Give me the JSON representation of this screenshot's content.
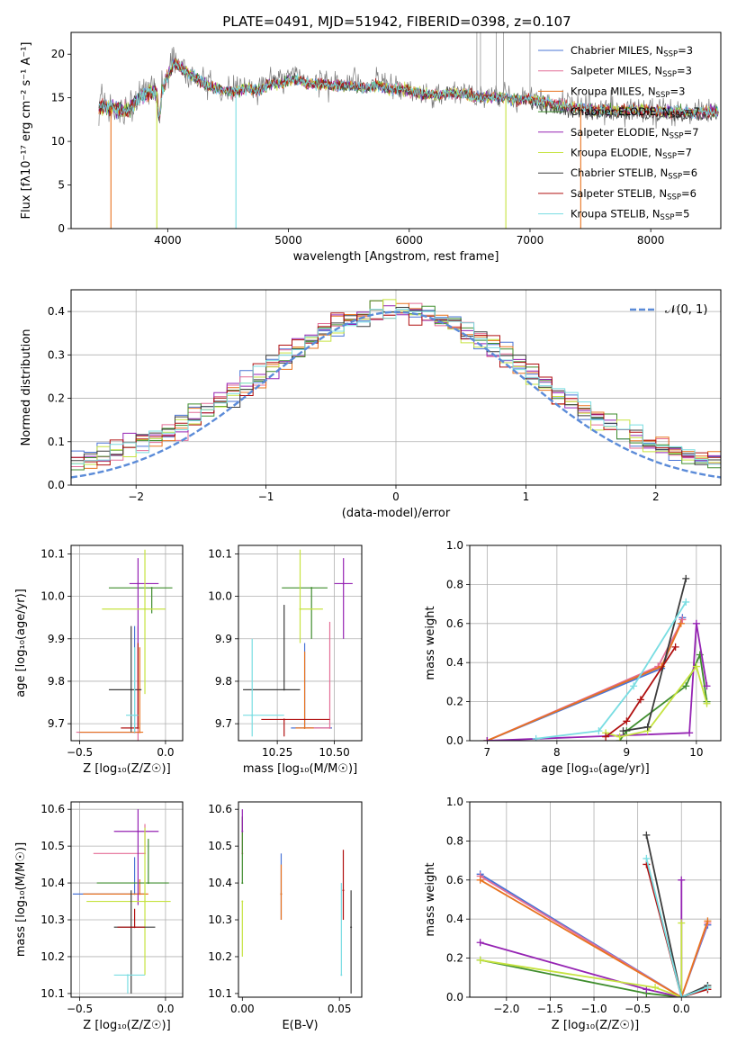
{
  "figure": {
    "title": "PLATE=0491, MJD=51942, FIBERID=0398, z=0.107"
  },
  "models": [
    {
      "name": "Chabrier MILES",
      "nssp": "3",
      "color": "#4a74d6"
    },
    {
      "name": "Salpeter MILES",
      "nssp": "3",
      "color": "#e46e97"
    },
    {
      "name": "Kroupa MILES",
      "nssp": "3",
      "color": "#e8731f"
    },
    {
      "name": "Chabrier ELODIE",
      "nssp": "7",
      "color": "#3f8d2d"
    },
    {
      "name": "Salpeter ELODIE",
      "nssp": "7",
      "color": "#9523b3"
    },
    {
      "name": "Kroupa ELODIE",
      "nssp": "7",
      "color": "#c6e340"
    },
    {
      "name": "Chabrier STELIB",
      "nssp": "6",
      "color": "#3c3c3c"
    },
    {
      "name": "Salpeter STELIB",
      "nssp": "6",
      "color": "#b01010"
    },
    {
      "name": "Kroupa STELIB",
      "nssp": "5",
      "color": "#79dde2"
    }
  ],
  "chart_data": [
    {
      "id": "spectrum",
      "type": "line",
      "title": "PLATE=0491, MJD=51942, FIBERID=0398, z=0.107",
      "xlabel": "wavelength [Angstrom, rest frame]",
      "ylabel": "Flux [fλ10⁻¹⁷ erg cm⁻² s⁻¹ A⁻¹]",
      "xlim": [
        3200,
        8580
      ],
      "ylim": [
        0,
        22.5
      ],
      "xticks": [
        "4000",
        "5000",
        "6000",
        "7000",
        "8000"
      ],
      "yticks": [
        "0",
        "5",
        "10",
        "15",
        "20"
      ],
      "legend_position": "top-right",
      "data_x": [
        3450,
        3550,
        3650,
        3750,
        3850,
        3950,
        4050,
        4150,
        4250,
        4350,
        4450,
        4550,
        4650,
        4750,
        4850,
        4950,
        5050,
        5150,
        5250,
        5350,
        5450,
        5550,
        5650,
        5750,
        5850,
        5950,
        6050,
        6150,
        6250,
        6350,
        6450,
        6550,
        6650,
        6750,
        6850,
        6950,
        7050,
        7150,
        7250,
        7350,
        7450,
        7550,
        7650,
        7750,
        7850,
        7950,
        8050,
        8150,
        8250,
        8350,
        8450,
        8550
      ],
      "data_y": [
        14.2,
        14.0,
        13.6,
        15.0,
        15.8,
        16.0,
        19.5,
        18.2,
        17.3,
        16.5,
        16.0,
        15.9,
        16.3,
        16.0,
        16.8,
        17.0,
        17.6,
        16.8,
        16.8,
        16.6,
        16.6,
        16.5,
        16.3,
        16.8,
        16.0,
        16.2,
        15.8,
        15.6,
        15.4,
        15.7,
        15.6,
        15.3,
        15.2,
        15.2,
        14.9,
        15.1,
        14.9,
        14.6,
        14.2,
        14.0,
        13.9,
        13.7,
        13.7,
        13.6,
        13.8,
        13.6,
        13.5,
        13.6,
        13.5,
        13.4,
        13.6,
        13.5
      ],
      "model_y": [
        14.0,
        13.9,
        13.4,
        14.8,
        15.6,
        15.8,
        19.0,
        18.0,
        17.1,
        16.3,
        15.8,
        15.7,
        16.1,
        15.8,
        16.6,
        16.7,
        17.2,
        16.6,
        16.6,
        16.4,
        16.4,
        16.3,
        16.1,
        16.4,
        15.9,
        16.0,
        15.6,
        15.4,
        15.3,
        15.5,
        15.4,
        15.1,
        15.0,
        15.0,
        14.8,
        14.9,
        14.7,
        14.4,
        14.1,
        13.9,
        13.8,
        13.6,
        13.6,
        13.5,
        13.6,
        13.5,
        13.4,
        13.4,
        13.4,
        13.3,
        13.4,
        13.4
      ],
      "absorption_dips": [
        3530,
        3910,
        4565,
        6800,
        7420
      ],
      "emission_spikes": [
        6560,
        6590,
        6720,
        7000,
        6780
      ]
    },
    {
      "id": "residuals",
      "type": "histogram",
      "xlabel": "(data-model)/error",
      "ylabel": "Normed distribution",
      "xlim": [
        -2.5,
        2.5
      ],
      "ylim": [
        0,
        0.45
      ],
      "xticks": [
        "−2",
        "−1",
        "0",
        "1",
        "2"
      ],
      "yticks": [
        "0.0",
        "0.1",
        "0.2",
        "0.3",
        "0.4"
      ],
      "grid": true,
      "legend_position": "top-right",
      "reference_curve": "𝒩(0, 1)",
      "bin_width": 0.1
    },
    {
      "id": "age-vs-z",
      "type": "scatter",
      "xlabel": "Z [log₁₀(Z/Z☉)]",
      "ylabel": "age  [log₁₀(age/yr)]",
      "xlim": [
        -0.55,
        0.1
      ],
      "ylim": [
        9.66,
        10.12
      ],
      "xticks": [
        "−0.5",
        "0.0"
      ],
      "yticks": [
        "9.7",
        "9.8",
        "9.9",
        "10.0",
        "10.1"
      ],
      "grid": true,
      "points": [
        {
          "x": -0.18,
          "y": 9.68,
          "ex": [
            0.33,
            0.02
          ],
          "ey": [
            0.0,
            0.25
          ]
        },
        {
          "x": -0.16,
          "y": 9.68,
          "ex": [
            0.36,
            0.02
          ],
          "ey": [
            0.02,
            0.25
          ]
        },
        {
          "x": -0.15,
          "y": 9.68,
          "ex": [
            0.35,
            0.02
          ],
          "ey": [
            0.0,
            0.2
          ]
        },
        {
          "x": -0.08,
          "y": 10.02,
          "ex": [
            0.25,
            0.12
          ],
          "ey": [
            0.06,
            0.0
          ]
        },
        {
          "x": -0.16,
          "y": 10.03,
          "ex": [
            0.05,
            0.12
          ],
          "ey": [
            0.34,
            0.06
          ]
        },
        {
          "x": -0.12,
          "y": 9.97,
          "ex": [
            0.25,
            0.12
          ],
          "ey": [
            0.2,
            0.14
          ]
        },
        {
          "x": -0.2,
          "y": 9.78,
          "ex": [
            0.13,
            0.06
          ],
          "ey": [
            0.1,
            0.15
          ]
        },
        {
          "x": -0.16,
          "y": 9.69,
          "ex": [
            0.1,
            0.0
          ],
          "ey": [
            0.0,
            0.2
          ]
        },
        {
          "x": -0.18,
          "y": 9.72,
          "ex": [
            0.05,
            0.02
          ],
          "ey": [
            0.04,
            0.16
          ]
        }
      ]
    },
    {
      "id": "age-vs-mass",
      "type": "scatter",
      "xlabel": "mass [log₁₀(M/M☉)]",
      "ylabel": "",
      "xlim": [
        10.08,
        10.62
      ],
      "ylim": [
        9.66,
        10.12
      ],
      "xticks": [
        "10.25",
        "10.50"
      ],
      "yticks": [
        "9.7",
        "9.8",
        "9.9",
        "10.0",
        "10.1"
      ],
      "grid": true,
      "points": [
        {
          "x": 10.37,
          "y": 9.69,
          "ex": [
            0.06,
            0.12
          ],
          "ey": [
            0.0,
            0.2
          ]
        },
        {
          "x": 10.48,
          "y": 9.69,
          "ex": [
            0.1,
            0.0
          ],
          "ey": [
            0.0,
            0.25
          ]
        },
        {
          "x": 10.37,
          "y": 9.69,
          "ex": [
            0.04,
            0.04
          ],
          "ey": [
            0.0,
            0.18
          ]
        },
        {
          "x": 10.4,
          "y": 10.02,
          "ex": [
            0.13,
            0.07
          ],
          "ey": [
            0.12,
            0.0
          ]
        },
        {
          "x": 10.54,
          "y": 10.03,
          "ex": [
            0.04,
            0.04
          ],
          "ey": [
            0.13,
            0.06
          ]
        },
        {
          "x": 10.35,
          "y": 9.97,
          "ex": [
            0.0,
            0.1
          ],
          "ey": [
            0.08,
            0.14
          ]
        },
        {
          "x": 10.28,
          "y": 9.78,
          "ex": [
            0.18,
            0.07
          ],
          "ey": [
            0.0,
            0.2
          ]
        },
        {
          "x": 10.28,
          "y": 9.71,
          "ex": [
            0.1,
            0.2
          ],
          "ey": [
            0.04,
            0.0
          ]
        },
        {
          "x": 10.14,
          "y": 9.72,
          "ex": [
            0.04,
            0.14
          ],
          "ey": [
            0.05,
            0.18
          ]
        }
      ]
    },
    {
      "id": "massweight-vs-age",
      "type": "line",
      "xlabel": "age  [log₁₀(age/yr)]",
      "ylabel": "mass weight",
      "xlim": [
        6.75,
        10.35
      ],
      "ylim": [
        0,
        1
      ],
      "xticks": [
        "7",
        "8",
        "9",
        "10"
      ],
      "yticks": [
        "0.0",
        "0.2",
        "0.4",
        "0.6",
        "0.8",
        "1.0"
      ],
      "grid": true,
      "series": [
        {
          "x": [
            7.0,
            9.5,
            9.8
          ],
          "y": [
            0.0,
            0.37,
            0.63
          ]
        },
        {
          "x": [
            7.0,
            9.45,
            9.8
          ],
          "y": [
            0.0,
            0.38,
            0.62
          ]
        },
        {
          "x": [
            7.0,
            9.5,
            9.78
          ],
          "y": [
            0.0,
            0.38,
            0.6
          ]
        },
        {
          "x": [
            8.9,
            9.0,
            9.85,
            10.05,
            10.15
          ],
          "y": [
            0.0,
            0.05,
            0.28,
            0.44,
            0.2
          ]
        },
        {
          "x": [
            7.0,
            9.9,
            10.0,
            10.15
          ],
          "y": [
            0.0,
            0.04,
            0.6,
            0.28
          ]
        },
        {
          "x": [
            8.7,
            8.9,
            9.3,
            10.0,
            10.15
          ],
          "y": [
            0.04,
            0.02,
            0.05,
            0.38,
            0.19
          ]
        },
        {
          "x": [
            8.95,
            9.3,
            9.85
          ],
          "y": [
            0.05,
            0.07,
            0.83
          ]
        },
        {
          "x": [
            8.7,
            9.0,
            9.2,
            9.7
          ],
          "y": [
            0.02,
            0.1,
            0.21,
            0.48
          ]
        },
        {
          "x": [
            7.7,
            8.6,
            9.1,
            9.85
          ],
          "y": [
            0.01,
            0.05,
            0.28,
            0.71
          ]
        }
      ]
    },
    {
      "id": "mass-vs-z",
      "type": "scatter",
      "xlabel": "Z [log₁₀(Z/Z☉)]",
      "ylabel": "mass [log₁₀(M/M☉)]",
      "xlim": [
        -0.55,
        0.1
      ],
      "ylim": [
        10.09,
        10.62
      ],
      "xticks": [
        "−0.5",
        "0.0"
      ],
      "yticks": [
        "10.1",
        "10.2",
        "10.3",
        "10.4",
        "10.5",
        "10.6"
      ],
      "grid": true,
      "points": [
        {
          "x": -0.18,
          "y": 10.37,
          "ex": [
            0.36,
            0.06
          ],
          "ey": [
            0.0,
            0.1
          ]
        },
        {
          "x": -0.12,
          "y": 10.48,
          "ex": [
            0.3,
            0.0
          ],
          "ey": [
            0.0,
            0.08
          ]
        },
        {
          "x": -0.15,
          "y": 10.37,
          "ex": [
            0.33,
            0.05
          ],
          "ey": [
            0.0,
            0.04
          ]
        },
        {
          "x": -0.1,
          "y": 10.4,
          "ex": [
            0.3,
            0.12
          ],
          "ey": [
            0.0,
            0.12
          ]
        },
        {
          "x": -0.16,
          "y": 10.54,
          "ex": [
            0.14,
            0.12
          ],
          "ey": [
            0.2,
            0.06
          ]
        },
        {
          "x": -0.12,
          "y": 10.35,
          "ex": [
            0.34,
            0.15
          ],
          "ey": [
            0.2,
            0.2
          ]
        },
        {
          "x": -0.2,
          "y": 10.28,
          "ex": [
            0.1,
            0.14
          ],
          "ey": [
            0.18,
            0.1
          ]
        },
        {
          "x": -0.18,
          "y": 10.28,
          "ex": [
            0.1,
            0.06
          ],
          "ey": [
            0.0,
            0.05
          ]
        },
        {
          "x": -0.22,
          "y": 10.15,
          "ex": [
            0.08,
            0.1
          ],
          "ey": [
            0.05,
            0.0
          ]
        }
      ]
    },
    {
      "id": "mass-vs-ebv",
      "type": "scatter",
      "xlabel": "E(B-V)",
      "ylabel": "",
      "xlim": [
        -0.002,
        0.0615
      ],
      "ylim": [
        10.09,
        10.62
      ],
      "xticks": [
        "0.00",
        "0.05"
      ],
      "yticks": [
        "10.1",
        "10.2",
        "10.3",
        "10.4",
        "10.5",
        "10.6"
      ],
      "points": [
        {
          "x": 0.02,
          "y": 10.37,
          "ex": [
            0,
            0
          ],
          "ey": [
            0.07,
            0.11
          ]
        },
        {
          "x": 0.0,
          "y": 10.48,
          "ex": [
            0,
            0
          ],
          "ey": [
            0.0,
            0.1
          ]
        },
        {
          "x": 0.02,
          "y": 10.37,
          "ex": [
            0,
            0
          ],
          "ey": [
            0.07,
            0.08
          ]
        },
        {
          "x": 0.0,
          "y": 10.4,
          "ex": [
            0,
            0
          ],
          "ey": [
            0.0,
            0.18
          ]
        },
        {
          "x": 0.0,
          "y": 10.54,
          "ex": [
            0,
            0
          ],
          "ey": [
            0.0,
            0.06
          ]
        },
        {
          "x": 0.0,
          "y": 10.35,
          "ex": [
            0,
            0
          ],
          "ey": [
            0.15,
            0.0
          ]
        },
        {
          "x": 0.056,
          "y": 10.28,
          "ex": [
            0,
            0
          ],
          "ey": [
            0.18,
            0.1
          ]
        },
        {
          "x": 0.052,
          "y": 10.38,
          "ex": [
            0,
            0
          ],
          "ey": [
            0.08,
            0.11
          ]
        },
        {
          "x": 0.051,
          "y": 10.15,
          "ex": [
            0,
            0
          ],
          "ey": [
            0.0,
            0.25
          ]
        }
      ]
    },
    {
      "id": "massweight-vs-z",
      "type": "line",
      "xlabel": "Z [log₁₀(Z/Z☉)]",
      "ylabel": "mass weight",
      "xlim": [
        -2.42,
        0.45
      ],
      "ylim": [
        0,
        1
      ],
      "xticks": [
        "−2.0",
        "−1.5",
        "−1.0",
        "−0.5",
        "0.0"
      ],
      "yticks": [
        "0.0",
        "0.2",
        "0.4",
        "0.6",
        "0.8",
        "1.0"
      ],
      "grid": true,
      "series": [
        {
          "x": [
            -2.3,
            0.0,
            0.3
          ],
          "y": [
            0.63,
            0.0,
            0.37
          ]
        },
        {
          "x": [
            -2.3,
            0.0,
            0.3
          ],
          "y": [
            0.62,
            0.0,
            0.38
          ]
        },
        {
          "x": [
            -2.3,
            0.0,
            0.3
          ],
          "y": [
            0.6,
            0.0,
            0.39
          ]
        },
        {
          "x": [
            -2.3,
            -0.4,
            0.0,
            0.3
          ],
          "y": [
            0.19,
            0.02,
            0.0,
            0.05
          ]
        },
        {
          "x": [
            -2.3,
            -0.4,
            0.0,
            0.0
          ],
          "y": [
            0.28,
            0.04,
            0.0,
            0.6
          ]
        },
        {
          "x": [
            -2.3,
            -0.3,
            0.0,
            0.0
          ],
          "y": [
            0.19,
            0.05,
            0.0,
            0.38
          ]
        },
        {
          "x": [
            -0.4,
            0.0,
            0.3
          ],
          "y": [
            0.83,
            0.0,
            0.06
          ]
        },
        {
          "x": [
            -0.4,
            0.0,
            0.3
          ],
          "y": [
            0.68,
            0.0,
            0.04
          ]
        },
        {
          "x": [
            -0.4,
            0.0,
            0.3
          ],
          "y": [
            0.71,
            0.0,
            0.05
          ]
        }
      ]
    }
  ]
}
